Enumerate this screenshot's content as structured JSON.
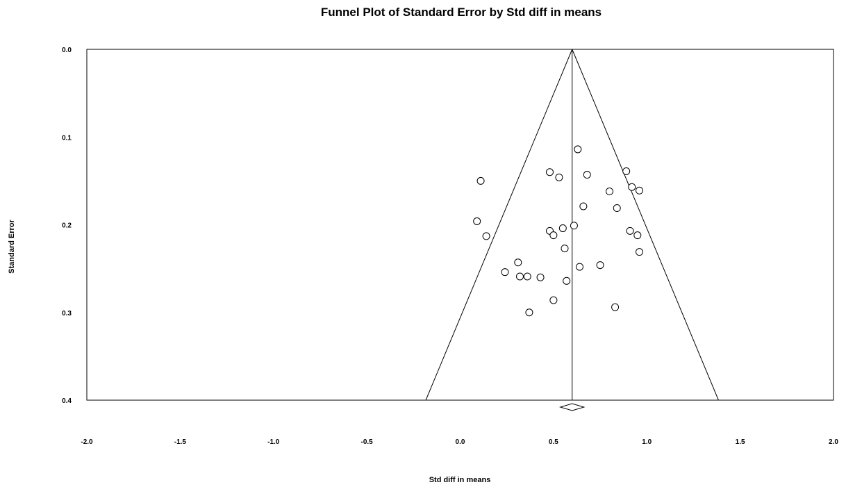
{
  "chart_data": {
    "type": "scatter",
    "title": "Funnel Plot of Standard Error by Std diff in means",
    "xlabel": "Std diff in means",
    "ylabel": "Standard Error",
    "xlim": [
      -2.0,
      2.0
    ],
    "ylim": [
      0.0,
      0.4
    ],
    "y_inverted": true,
    "xticks": [
      "-2.0",
      "-1.5",
      "-1.0",
      "-0.5",
      "0.0",
      "0.5",
      "1.0",
      "1.5",
      "2.0"
    ],
    "yticks": [
      "0.0",
      "0.1",
      "0.2",
      "0.3",
      "0.4"
    ],
    "grid": false,
    "combined_effect": 0.6,
    "points": [
      {
        "x": 0.63,
        "y": 0.114
      },
      {
        "x": 0.48,
        "y": 0.14
      },
      {
        "x": 0.53,
        "y": 0.146
      },
      {
        "x": 0.68,
        "y": 0.143
      },
      {
        "x": 0.89,
        "y": 0.139
      },
      {
        "x": 0.11,
        "y": 0.15
      },
      {
        "x": 0.92,
        "y": 0.157
      },
      {
        "x": 0.96,
        "y": 0.161
      },
      {
        "x": 0.8,
        "y": 0.162
      },
      {
        "x": 0.66,
        "y": 0.179
      },
      {
        "x": 0.84,
        "y": 0.181
      },
      {
        "x": 0.09,
        "y": 0.196
      },
      {
        "x": 0.61,
        "y": 0.201
      },
      {
        "x": 0.55,
        "y": 0.204
      },
      {
        "x": 0.48,
        "y": 0.207
      },
      {
        "x": 0.91,
        "y": 0.207
      },
      {
        "x": 0.5,
        "y": 0.212
      },
      {
        "x": 0.95,
        "y": 0.212
      },
      {
        "x": 0.14,
        "y": 0.213
      },
      {
        "x": 0.56,
        "y": 0.227
      },
      {
        "x": 0.96,
        "y": 0.231
      },
      {
        "x": 0.31,
        "y": 0.243
      },
      {
        "x": 0.64,
        "y": 0.248
      },
      {
        "x": 0.75,
        "y": 0.246
      },
      {
        "x": 0.24,
        "y": 0.254
      },
      {
        "x": 0.32,
        "y": 0.259
      },
      {
        "x": 0.36,
        "y": 0.259
      },
      {
        "x": 0.43,
        "y": 0.26
      },
      {
        "x": 0.57,
        "y": 0.264
      },
      {
        "x": 0.5,
        "y": 0.286
      },
      {
        "x": 0.83,
        "y": 0.294
      },
      {
        "x": 0.37,
        "y": 0.3
      }
    ]
  }
}
